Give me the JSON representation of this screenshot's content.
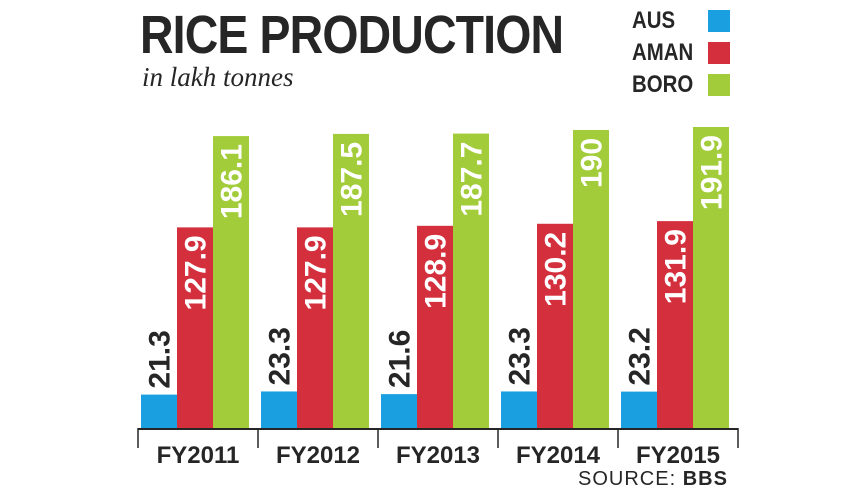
{
  "chart_data": {
    "type": "bar",
    "title": "RICE PRODUCTION",
    "subtitle": "in lakh tonnes",
    "categories": [
      "FY2011",
      "FY2012",
      "FY2013",
      "FY2014",
      "FY2015"
    ],
    "series": [
      {
        "name": "AUS",
        "color": "#1a9fe0",
        "values": [
          21.3,
          23.3,
          21.6,
          23.3,
          23.2
        ]
      },
      {
        "name": "AMAN",
        "color": "#d32f3c",
        "values": [
          127.9,
          127.9,
          128.9,
          130.2,
          131.9
        ]
      },
      {
        "name": "BORO",
        "color": "#a2cc3a",
        "values": [
          186.1,
          187.5,
          187.7,
          190,
          191.9
        ]
      }
    ],
    "value_labels": [
      [
        "21.3",
        "23.3",
        "21.6",
        "23.3",
        "23.2"
      ],
      [
        "127.9",
        "127.9",
        "128.9",
        "130.2",
        "131.9"
      ],
      [
        "186.1",
        "187.5",
        "187.7",
        "190",
        "191.9"
      ]
    ],
    "ylim": [
      0,
      191.9
    ],
    "grid": false,
    "legend_position": "top-right",
    "source_prefix": "SOURCE:",
    "source_name": "BBS"
  }
}
